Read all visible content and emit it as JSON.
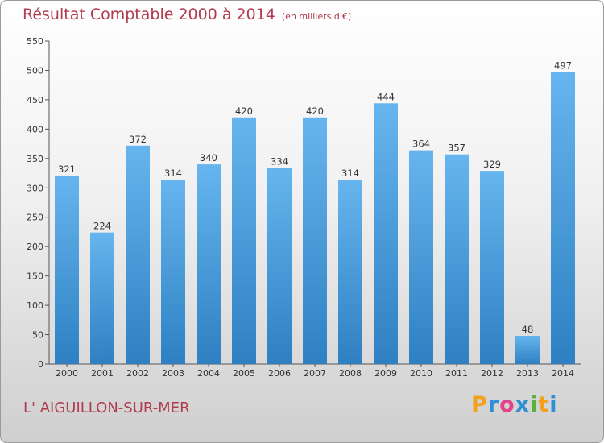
{
  "title": "Résultat Comptable 2000 à 2014",
  "unit_label": "(en milliers d'€)",
  "place": "L' AIGUILLON-SUR-MER",
  "logo": {
    "letters": [
      "P",
      "r",
      "o",
      "x",
      "i",
      "t",
      "i"
    ],
    "colors": [
      "#f0a21e",
      "#2f8fd6",
      "#e3428a",
      "#2f8fd6",
      "#58b13c",
      "#f0a21e",
      "#2f8fd6"
    ]
  },
  "colors": {
    "bar_light": "#66b5ee",
    "bar_dark": "#2e80c2",
    "title": "#b03a4e"
  },
  "chart_data": {
    "type": "bar",
    "categories": [
      "2000",
      "2001",
      "2002",
      "2003",
      "2004",
      "2005",
      "2006",
      "2007",
      "2008",
      "2009",
      "2010",
      "2011",
      "2012",
      "2013",
      "2014"
    ],
    "values": [
      321,
      224,
      372,
      314,
      340,
      420,
      334,
      420,
      314,
      444,
      364,
      357,
      329,
      48,
      497
    ],
    "ylim": [
      0,
      550
    ],
    "yticks": [
      0,
      50,
      100,
      150,
      200,
      250,
      300,
      350,
      400,
      450,
      500,
      550
    ],
    "grid": false,
    "data_labels": true
  }
}
